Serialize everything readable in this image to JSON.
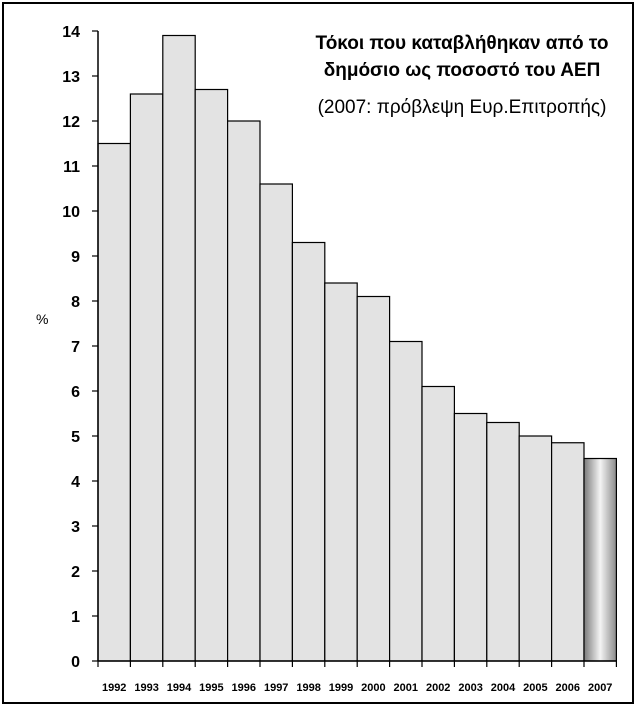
{
  "chart_data": {
    "type": "bar",
    "title_line1": "Τόκοι που καταβλήθηκαν από το",
    "title_line2": "δημόσιο ως ποσοστό του ΑΕΠ",
    "subtitle": "(2007: πρόβλεψη Ευρ.Επιτροπής)",
    "xlabel": "",
    "ylabel": "%",
    "ylim": [
      0,
      14
    ],
    "yticks": [
      0,
      1,
      2,
      3,
      4,
      5,
      6,
      7,
      8,
      9,
      10,
      11,
      12,
      13,
      14
    ],
    "categories": [
      "1992",
      "1993",
      "1994",
      "1995",
      "1996",
      "1997",
      "1998",
      "1999",
      "2000",
      "2001",
      "2002",
      "2003",
      "2004",
      "2005",
      "2006",
      "2007"
    ],
    "values": [
      11.5,
      12.6,
      13.9,
      12.7,
      12.0,
      10.6,
      9.3,
      8.4,
      8.1,
      7.1,
      6.1,
      5.5,
      5.3,
      5.0,
      4.85,
      4.5
    ],
    "forecast_index": 15,
    "grid": false,
    "colors": {
      "bar": "#e3e3e3",
      "bar_outline": "#000000",
      "forecast_bar": "#b0b0b0"
    }
  }
}
